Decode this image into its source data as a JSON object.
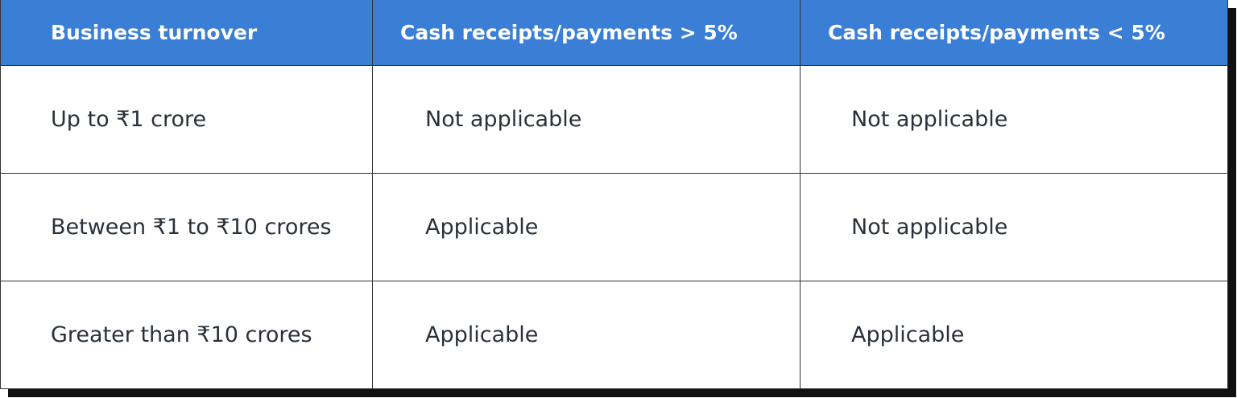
{
  "table": {
    "header": [
      "Business turnover",
      "Cash receipts/payments > 5%",
      "Cash receipts/payments < 5%"
    ],
    "rows": [
      [
        "Up to ₹1 crore",
        "Not applicable",
        "Not applicable"
      ],
      [
        "Between ₹1 to ₹10 crores",
        "Applicable",
        "Not applicable"
      ],
      [
        "Greater than ₹10 crores",
        "Applicable",
        "Applicable"
      ]
    ]
  }
}
